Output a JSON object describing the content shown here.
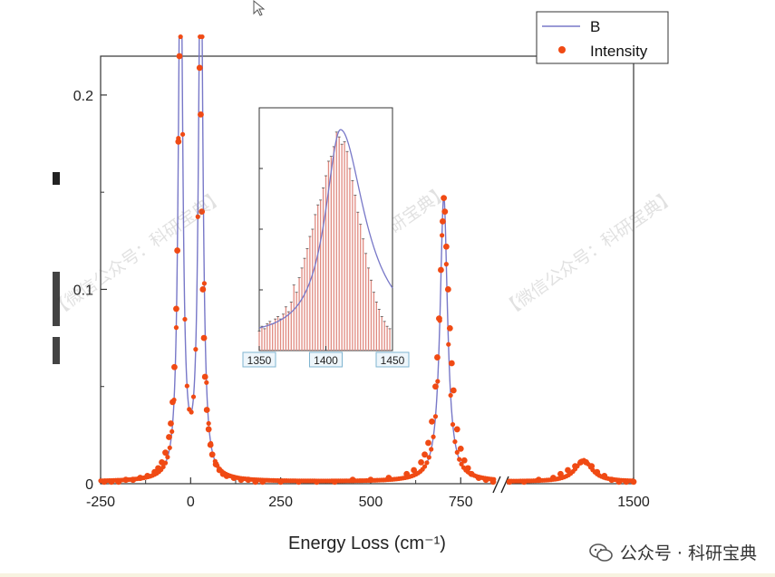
{
  "chart_data": {
    "type": "scatter",
    "xlabel": "Energy Loss (cm⁻¹)",
    "ylabel": "",
    "xlim": [
      -250,
      1500
    ],
    "ylim": [
      0,
      0.22
    ],
    "x_break": [
      850,
      1150
    ],
    "x_ticks": [
      "-250",
      "0",
      "250",
      "500",
      "750",
      "1500"
    ],
    "y_ticks": [
      "0",
      "0.1",
      "0.2"
    ],
    "legend": {
      "placement": "top-right",
      "entries": [
        "B",
        "Intensity"
      ]
    },
    "series": [
      {
        "name": "B",
        "style": "line",
        "color": "#7878c8",
        "peaks": [
          {
            "center": -28,
            "amplitude": 0.3,
            "width": 14
          },
          {
            "center": 28,
            "amplitude": 0.3,
            "width": 14
          },
          {
            "center": 703,
            "amplitude": 0.147,
            "width": 25
          },
          {
            "center": 1363,
            "amplitude": 0.011,
            "width": 55
          }
        ],
        "baseline": 0.001
      },
      {
        "name": "Intensity",
        "style": "markers",
        "color": "#f04a14",
        "x": [
          -240,
          -220,
          -200,
          -180,
          -160,
          -140,
          -120,
          -100,
          -90,
          -80,
          -70,
          -60,
          -55,
          -50,
          -45,
          -40,
          -37,
          -34,
          -31,
          25,
          28,
          31,
          34,
          37,
          40,
          45,
          50,
          55,
          60,
          70,
          80,
          90,
          100,
          120,
          140,
          160,
          180,
          200,
          250,
          300,
          350,
          400,
          450,
          500,
          550,
          600,
          620,
          640,
          650,
          660,
          670,
          680,
          685,
          690,
          695,
          700,
          703,
          706,
          710,
          715,
          720,
          725,
          730,
          740,
          750,
          760,
          770,
          780,
          800,
          820,
          840,
          1160,
          1200,
          1240,
          1280,
          1300,
          1320,
          1340,
          1355,
          1370,
          1385,
          1400,
          1420,
          1440,
          1460,
          1480,
          1500
        ],
        "y": [
          0.001,
          0.001,
          0.001,
          0.002,
          0.002,
          0.003,
          0.004,
          0.006,
          0.008,
          0.011,
          0.016,
          0.024,
          0.031,
          0.042,
          0.06,
          0.09,
          0.12,
          0.176,
          0.22,
          0.214,
          0.19,
          0.14,
          0.1,
          0.075,
          0.055,
          0.038,
          0.028,
          0.02,
          0.015,
          0.01,
          0.007,
          0.005,
          0.004,
          0.003,
          0.002,
          0.002,
          0.001,
          0.001,
          0.001,
          0.001,
          0.001,
          0.001,
          0.002,
          0.002,
          0.003,
          0.005,
          0.007,
          0.011,
          0.015,
          0.021,
          0.032,
          0.05,
          0.065,
          0.085,
          0.11,
          0.135,
          0.147,
          0.14,
          0.122,
          0.1,
          0.08,
          0.062,
          0.048,
          0.028,
          0.018,
          0.012,
          0.008,
          0.005,
          0.003,
          0.002,
          0.001,
          0.001,
          0.001,
          0.002,
          0.003,
          0.005,
          0.007,
          0.009,
          0.011,
          0.011,
          0.009,
          0.006,
          0.004,
          0.002,
          0.001,
          0.001,
          0.001
        ]
      }
    ],
    "inset": {
      "type": "bar",
      "xlim": [
        1350,
        1450
      ],
      "x_ticks": [
        "1350",
        "1400",
        "1450"
      ],
      "bar_color": "#e08a80",
      "fit_color": "#7878c8",
      "x_start": 1350,
      "x_step": 2,
      "bar_values": [
        0.08,
        0.1,
        0.09,
        0.11,
        0.12,
        0.11,
        0.13,
        0.14,
        0.13,
        0.15,
        0.18,
        0.16,
        0.2,
        0.27,
        0.24,
        0.3,
        0.34,
        0.38,
        0.42,
        0.47,
        0.5,
        0.56,
        0.6,
        0.62,
        0.67,
        0.72,
        0.78,
        0.8,
        0.84,
        0.9,
        0.88,
        0.85,
        0.86,
        0.82,
        0.75,
        0.7,
        0.64,
        0.57,
        0.52,
        0.46,
        0.4,
        0.34,
        0.29,
        0.24,
        0.2,
        0.17,
        0.14,
        0.12,
        0.1,
        0.09
      ],
      "fit": {
        "center": 1411,
        "amplitude": 0.86,
        "width_left": 14,
        "width_right": 22,
        "baseline": 0.05
      }
    },
    "watermark_text": "【微信公众号：科研宝典】"
  },
  "wechat_badge_text": "公众号 · 科研宝典"
}
